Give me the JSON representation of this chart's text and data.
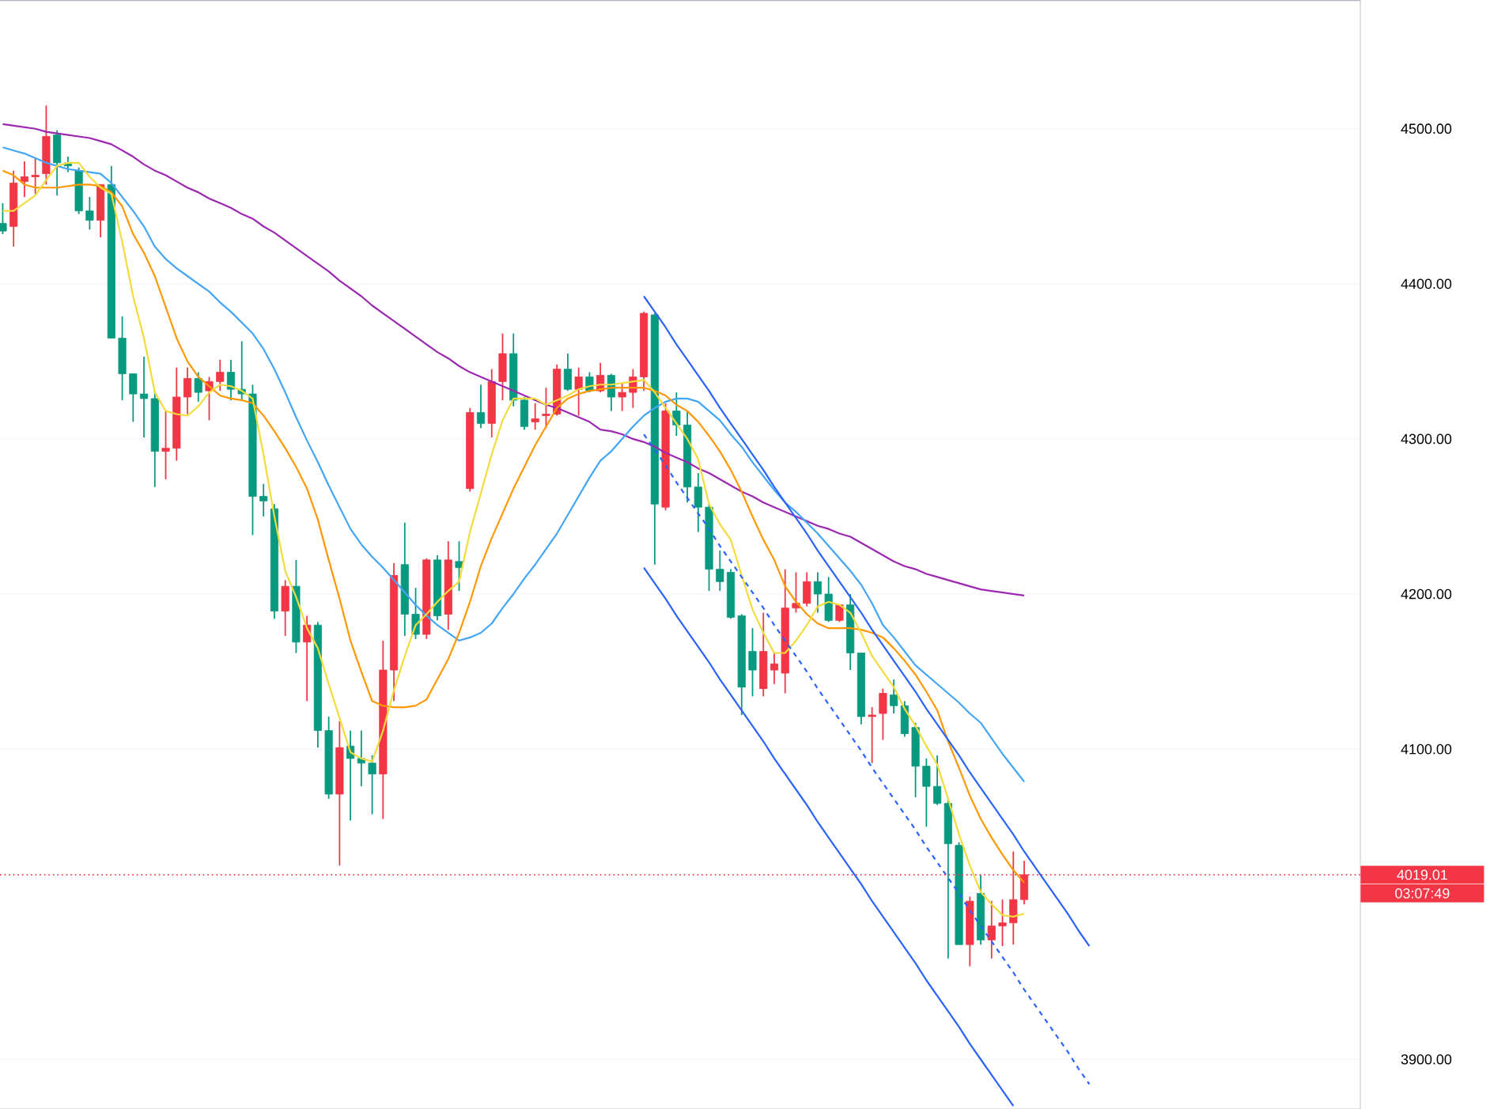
{
  "chart_data": {
    "type": "candlestick",
    "categories": [
      null,
      null,
      null,
      null,
      null,
      null,
      null,
      null,
      null,
      null,
      null,
      null,
      null,
      null,
      null,
      null,
      null,
      null,
      null,
      null,
      null,
      null,
      null,
      null,
      null,
      null,
      null,
      null,
      null,
      null,
      null,
      null,
      null,
      null,
      null,
      null,
      null,
      null,
      null,
      null,
      null,
      null,
      null,
      null,
      null,
      null,
      null,
      null,
      null,
      null,
      null,
      null,
      null,
      null,
      null,
      null,
      null,
      null,
      null,
      null,
      null,
      null,
      null,
      null,
      null,
      null,
      null,
      null,
      null,
      null,
      null,
      null,
      null,
      null,
      null,
      null,
      null,
      null,
      null,
      null,
      null,
      null,
      null,
      null,
      null,
      null,
      null,
      null,
      null,
      null,
      null,
      null,
      null,
      null,
      null,
      null,
      null,
      null,
      null,
      null,
      null
    ],
    "ohlc": [
      [
        4439,
        4452,
        4432,
        4434
      ],
      [
        4437,
        4473,
        4424,
        4465
      ],
      [
        4466,
        4479,
        4456,
        4469
      ],
      [
        4469,
        4481,
        4458,
        4470
      ],
      [
        4471,
        4515,
        4464,
        4495
      ],
      [
        4496,
        4499,
        4457,
        4478
      ],
      [
        4478,
        4482,
        4472,
        4476
      ],
      [
        4473,
        4475,
        4445,
        4447
      ],
      [
        4447,
        4456,
        4435,
        4441
      ],
      [
        4441,
        4464,
        4430,
        4464
      ],
      [
        4464,
        4476,
        4365,
        4365
      ],
      [
        4365,
        4379,
        4325,
        4342
      ],
      [
        4342,
        4342,
        4311,
        4329
      ],
      [
        4329,
        4353,
        4301,
        4326
      ],
      [
        4326,
        4331,
        4269,
        4292
      ],
      [
        4292,
        4318,
        4274,
        4294
      ],
      [
        4294,
        4346,
        4286,
        4327
      ],
      [
        4327,
        4346,
        4316,
        4339
      ],
      [
        4339,
        4343,
        4324,
        4330
      ],
      [
        4331,
        4340,
        4312,
        4337
      ],
      [
        4337,
        4351,
        4331,
        4343
      ],
      [
        4343,
        4351,
        4325,
        4332
      ],
      [
        4332,
        4363,
        4325,
        4329
      ],
      [
        4329,
        4335,
        4238,
        4263
      ],
      [
        4263,
        4271,
        4250,
        4260
      ],
      [
        4255,
        4258,
        4184,
        4189
      ],
      [
        4189,
        4209,
        4173,
        4205
      ],
      [
        4205,
        4222,
        4162,
        4169
      ],
      [
        4169,
        4186,
        4131,
        4180
      ],
      [
        4180,
        4182,
        4101,
        4112
      ],
      [
        4112,
        4121,
        4068,
        4071
      ],
      [
        4071,
        4118,
        4025,
        4101
      ],
      [
        4102,
        4112,
        4054,
        4094
      ],
      [
        4094,
        4112,
        4076,
        4091
      ],
      [
        4091,
        4096,
        4058,
        4084
      ],
      [
        4084,
        4170,
        4055,
        4151
      ],
      [
        4151,
        4220,
        4131,
        4212
      ],
      [
        4219,
        4246,
        4173,
        4187
      ],
      [
        4187,
        4204,
        4171,
        4174
      ],
      [
        4174,
        4223,
        4171,
        4222
      ],
      [
        4222,
        4225,
        4183,
        4186
      ],
      [
        4187,
        4234,
        4177,
        4222
      ],
      [
        4221,
        4234,
        4202,
        4217
      ],
      [
        4268,
        4320,
        4266,
        4317
      ],
      [
        4317,
        4335,
        4307,
        4310
      ],
      [
        4310,
        4345,
        4301,
        4337
      ],
      [
        4337,
        4368,
        4325,
        4355
      ],
      [
        4355,
        4368,
        4321,
        4325
      ],
      [
        4325,
        4327,
        4306,
        4308
      ],
      [
        4311,
        4323,
        4306,
        4313
      ],
      [
        4315,
        4333,
        4307,
        4316
      ],
      [
        4316,
        4348,
        4315,
        4345
      ],
      [
        4345,
        4355,
        4331,
        4332
      ],
      [
        4332,
        4346,
        4315,
        4340
      ],
      [
        4340,
        4343,
        4330,
        4331
      ],
      [
        4331,
        4349,
        4330,
        4341
      ],
      [
        4341,
        4342,
        4318,
        4327
      ],
      [
        4327,
        4336,
        4318,
        4330
      ],
      [
        4330,
        4345,
        4320,
        4340
      ],
      [
        4340,
        4382,
        4331,
        4381
      ],
      [
        4380,
        4381,
        4219,
        4258
      ],
      [
        4256,
        4323,
        4254,
        4318
      ],
      [
        4318,
        4330,
        4302,
        4309
      ],
      [
        4309,
        4318,
        4259,
        4269
      ],
      [
        4269,
        4278,
        4240,
        4256
      ],
      [
        4256,
        4258,
        4202,
        4216
      ],
      [
        4216,
        4228,
        4202,
        4208
      ],
      [
        4214,
        4216,
        4184,
        4185
      ],
      [
        4186,
        4187,
        4122,
        4140
      ],
      [
        4163,
        4178,
        4134,
        4151
      ],
      [
        4139,
        4188,
        4134,
        4163
      ],
      [
        4151,
        4162,
        4142,
        4155
      ],
      [
        4149,
        4216,
        4136,
        4191
      ],
      [
        4191,
        4214,
        4188,
        4194
      ],
      [
        4194,
        4214,
        4192,
        4208
      ],
      [
        4208,
        4214,
        4188,
        4200
      ],
      [
        4200,
        4211,
        4182,
        4183
      ],
      [
        4183,
        4193,
        4182,
        4193
      ],
      [
        4193,
        4200,
        4151,
        4162
      ],
      [
        4162,
        4162,
        4116,
        4121
      ],
      [
        4121,
        4127,
        4091,
        4122
      ],
      [
        4123,
        4139,
        4106,
        4136
      ],
      [
        4135,
        4145,
        4123,
        4128
      ],
      [
        4128,
        4131,
        4108,
        4110
      ],
      [
        4114,
        4117,
        4069,
        4089
      ],
      [
        4089,
        4094,
        4050,
        4076
      ],
      [
        4076,
        4096,
        4064,
        4065
      ],
      [
        4065,
        4067,
        3965,
        4039
      ],
      [
        4038,
        4040,
        3974,
        3974
      ],
      [
        3974,
        4005,
        3960,
        4002
      ],
      [
        4007,
        4019,
        3974,
        3977
      ],
      [
        3977,
        4002,
        3965,
        3986
      ],
      [
        3986,
        4003,
        3973,
        3988
      ],
      [
        3988,
        4034,
        3974,
        4003
      ],
      [
        4003,
        4028,
        4000,
        4019.01
      ],
      null,
      null,
      null,
      null,
      null,
      null
    ],
    "colors": [
      "#089981",
      "#f23645",
      "#f23645",
      "#f23645",
      "#f23645",
      "#089981",
      "#089981",
      "#089981",
      "#089981",
      "#f23645",
      "#089981",
      "#089981",
      "#089981",
      "#089981",
      "#089981",
      "#f23645",
      "#f23645",
      "#f23645",
      "#089981",
      "#f23645",
      "#f23645",
      "#089981",
      "#089981",
      "#089981",
      "#089981",
      "#089981",
      "#f23645",
      "#089981",
      "#f23645",
      "#089981",
      "#089981",
      "#f23645",
      "#089981",
      "#089981",
      "#089981",
      "#f23645",
      "#f23645",
      "#089981",
      "#089981",
      "#f23645",
      "#089981",
      "#f23645",
      "#089981",
      "#f23645",
      "#089981",
      "#f23645",
      "#f23645",
      "#089981",
      "#089981",
      "#f23645",
      "#f23645",
      "#f23645",
      "#089981",
      "#f23645",
      "#089981",
      "#f23645",
      "#089981",
      "#f23645",
      "#f23645",
      "#f23645",
      "#089981",
      "#f23645",
      "#089981",
      "#089981",
      "#089981",
      "#089981",
      "#089981",
      "#089981",
      "#089981",
      "#089981",
      "#f23645",
      "#f23645",
      "#f23645",
      "#f23645",
      "#f23645",
      "#089981",
      "#089981",
      "#f23645",
      "#089981",
      "#089981",
      "#f23645",
      "#f23645",
      "#089981",
      "#089981",
      "#089981",
      "#089981",
      "#089981",
      "#089981",
      "#089981",
      "#f23645",
      "#089981",
      "#f23645",
      "#f23645",
      "#f23645",
      "#f23645",
      null,
      null,
      null,
      null,
      null,
      null
    ],
    "series": [
      {
        "type": "line",
        "color": "#9c27b0",
        "values": [
          4503,
          4502,
          4501,
          4500,
          4498,
          4497,
          4496,
          4495,
          4494,
          4492,
          4490,
          4486,
          4482,
          4477,
          4473,
          4470,
          4466,
          4462,
          4459,
          4455,
          4452,
          4449,
          4445,
          4442,
          4437,
          4433,
          4428,
          4423,
          4418,
          4413,
          4408,
          4402,
          4397,
          4392,
          4386,
          4381,
          4376,
          4371,
          4366,
          4361,
          4356,
          4352,
          4347,
          4343,
          4340,
          4337,
          4334,
          4331,
          4328,
          4325,
          4322,
          4320,
          4317,
          4314,
          4311,
          4306,
          4305,
          4303,
          4300,
          4298,
          4295,
          4291,
          4288,
          4285,
          4281,
          4278,
          4274,
          4270,
          4266,
          4263,
          4259,
          4256,
          4253,
          4250,
          4247,
          4244,
          4242,
          4239,
          4237,
          4233,
          4229,
          4225,
          4221,
          4218,
          4216,
          4213,
          4211,
          4209,
          4207,
          4205,
          4203,
          4202,
          4201,
          4200,
          4199,
          null,
          null,
          null,
          null,
          null,
          null
        ]
      },
      {
        "type": "line",
        "color": "#42a5f5",
        "values": [
          4488,
          4486,
          4484,
          4481,
          4478,
          4476,
          4474,
          4473,
          4472,
          4471,
          4465,
          4456,
          4447,
          4437,
          4424,
          4416,
          4410,
          4405,
          4400,
          4395,
          4388,
          4382,
          4375,
          4368,
          4358,
          4345,
          4330,
          4314,
          4299,
          4285,
          4270,
          4256,
          4242,
          4232,
          4224,
          4217,
          4209,
          4201,
          4193,
          4186,
          4180,
          4175,
          4170,
          4172,
          4175,
          4181,
          4191,
          4200,
          4210,
          4219,
          4229,
          4239,
          4251,
          4263,
          4275,
          4286,
          4292,
          4300,
          4308,
          4315,
          4320,
          4324,
          4326,
          4326,
          4324,
          4318,
          4312,
          4303,
          4295,
          4285,
          4276,
          4267,
          4259,
          4253,
          4246,
          4239,
          4231,
          4223,
          4215,
          4206,
          4194,
          4180,
          4172,
          4163,
          4154,
          4148,
          4142,
          4136,
          4130,
          4123,
          4117,
          4107,
          4097,
          4088,
          4079,
          null,
          null,
          null,
          null,
          null,
          null
        ]
      },
      {
        "type": "line",
        "color": "#ff9800",
        "values": [
          4473,
          4470,
          4464,
          4462,
          4462,
          4462,
          4463,
          4464,
          4464,
          4463,
          4459,
          4450,
          4432,
          4420,
          4405,
          4385,
          4365,
          4350,
          4340,
          4334,
          4328,
          4326,
          4325,
          4323,
          4315,
          4305,
          4294,
          4282,
          4268,
          4248,
          4222,
          4197,
          4170,
          4150,
          4131,
          4128,
          4127,
          4127,
          4128,
          4132,
          4145,
          4158,
          4175,
          4195,
          4218,
          4236,
          4252,
          4268,
          4282,
          4296,
          4308,
          4320,
          4326,
          4329,
          4331,
          4332,
          4333,
          4333,
          4333,
          4333,
          4331,
          4328,
          4322,
          4318,
          4311,
          4302,
          4292,
          4280,
          4266,
          4250,
          4235,
          4222,
          4205,
          4195,
          4187,
          4181,
          4178,
          4178,
          4178,
          4177,
          4175,
          4172,
          4165,
          4157,
          4148,
          4137,
          4125,
          4105,
          4088,
          4070,
          4055,
          4043,
          4032,
          4022,
          4014,
          null,
          null,
          null,
          null,
          null,
          null
        ]
      },
      {
        "type": "line",
        "color": "#f2dc3c",
        "values": [
          4447,
          4447,
          4452,
          4457,
          4467,
          4476,
          4478,
          4478,
          4469,
          4462,
          4458,
          4427,
          4392,
          4365,
          4330,
          4318,
          4316,
          4315,
          4321,
          4330,
          4335,
          4334,
          4331,
          4326,
          4290,
          4250,
          4215,
          4198,
          4178,
          4165,
          4142,
          4120,
          4098,
          4094,
          4092,
          4112,
          4138,
          4160,
          4180,
          4187,
          4195,
          4202,
          4208,
          4240,
          4265,
          4290,
          4312,
          4326,
          4326,
          4326,
          4322,
          4325,
          4328,
          4332,
          4334,
          4335,
          4335,
          4336,
          4337,
          4338,
          4330,
          4320,
          4310,
          4300,
          4287,
          4258,
          4245,
          4235,
          4212,
          4190,
          4175,
          4162,
          4162,
          4170,
          4180,
          4192,
          4195,
          4193,
          4188,
          4175,
          4160,
          4150,
          4140,
          4126,
          4115,
          4102,
          4090,
          4068,
          4045,
          4025,
          4008,
          4000,
          3993,
          3992,
          3994,
          null,
          null,
          null,
          null,
          null,
          null
        ]
      },
      {
        "type": "line",
        "color": "#2962ff",
        "values": [
          null,
          null,
          null,
          null,
          null,
          null,
          null,
          null,
          null,
          null,
          null,
          null,
          null,
          null,
          null,
          null,
          null,
          null,
          null,
          null,
          null,
          null,
          null,
          null,
          null,
          null,
          null,
          null,
          null,
          null,
          null,
          null,
          null,
          null,
          null,
          null,
          null,
          null,
          null,
          null,
          null,
          null,
          null,
          null,
          null,
          null,
          null,
          null,
          null,
          null,
          null,
          null,
          null,
          null,
          null,
          null,
          null,
          null,
          null,
          4392,
          4382,
          4372,
          4361,
          4351,
          4341,
          4331,
          4320,
          4310,
          4300,
          4290,
          4280,
          4269,
          4259,
          4249,
          4239,
          4228,
          4218,
          4208,
          4198,
          4188,
          4177,
          4167,
          4157,
          4147,
          4137,
          4126,
          4116,
          4106,
          4096,
          4085,
          4075,
          4065,
          4055,
          4045,
          4034,
          4024,
          4014,
          4004,
          3994,
          3983,
          3973
        ]
      },
      {
        "type": "line",
        "color": "#2962ff",
        "line_style": "dashed",
        "values": [
          null,
          null,
          null,
          null,
          null,
          null,
          null,
          null,
          null,
          null,
          null,
          null,
          null,
          null,
          null,
          null,
          null,
          null,
          null,
          null,
          null,
          null,
          null,
          null,
          null,
          null,
          null,
          null,
          null,
          null,
          null,
          null,
          null,
          null,
          null,
          null,
          null,
          null,
          null,
          null,
          null,
          null,
          null,
          null,
          null,
          null,
          null,
          null,
          null,
          null,
          null,
          null,
          null,
          null,
          null,
          null,
          null,
          null,
          null,
          4303,
          4293,
          4283,
          4272,
          4262,
          4252,
          4242,
          4231,
          4221,
          4211,
          4201,
          4191,
          4180,
          4170,
          4160,
          4150,
          4139,
          4129,
          4119,
          4109,
          4099,
          4088,
          4078,
          4068,
          4058,
          4048,
          4037,
          4027,
          4017,
          4007,
          3996,
          3986,
          3976,
          3966,
          3956,
          3945,
          3935,
          3925,
          3915,
          3905,
          3894,
          3884
        ]
      },
      {
        "type": "line",
        "color": "#2962ff",
        "values": [
          null,
          null,
          null,
          null,
          null,
          null,
          null,
          null,
          null,
          null,
          null,
          null,
          null,
          null,
          null,
          null,
          null,
          null,
          null,
          null,
          null,
          null,
          null,
          null,
          null,
          null,
          null,
          null,
          null,
          null,
          null,
          null,
          null,
          null,
          null,
          null,
          null,
          null,
          null,
          null,
          null,
          null,
          null,
          null,
          null,
          null,
          null,
          null,
          null,
          null,
          null,
          null,
          null,
          null,
          null,
          null,
          null,
          null,
          null,
          4217,
          4207,
          4197,
          4186,
          4176,
          4166,
          4156,
          4145,
          4135,
          4125,
          4115,
          4105,
          4094,
          4084,
          4074,
          4064,
          4053,
          4043,
          4033,
          4023,
          4013,
          4002,
          3992,
          3982,
          3972,
          3962,
          3951,
          3941,
          3931,
          3921,
          3910,
          3900,
          3890,
          3880,
          3870,
          null,
          null,
          null,
          null,
          null,
          null,
          null
        ]
      }
    ],
    "ylim": [
      3868,
      4583
    ],
    "yticks": [
      {
        "value": 3900,
        "label": "3900.00"
      },
      {
        "value": 4100,
        "label": "4100.00"
      },
      {
        "value": 4200,
        "label": "4200.00"
      },
      {
        "value": 4300,
        "label": "4300.00"
      },
      {
        "value": 4400,
        "label": "4400.00"
      },
      {
        "value": 4500,
        "label": "4500.00"
      }
    ],
    "grid": "y",
    "tick_labels": "y",
    "ref_lines": [
      {
        "axis": "y",
        "value": 4019.01,
        "label": "4019.01",
        "color": "#f23645",
        "line_style": "dotted"
      }
    ],
    "annotations": [
      "03:07:49"
    ]
  }
}
